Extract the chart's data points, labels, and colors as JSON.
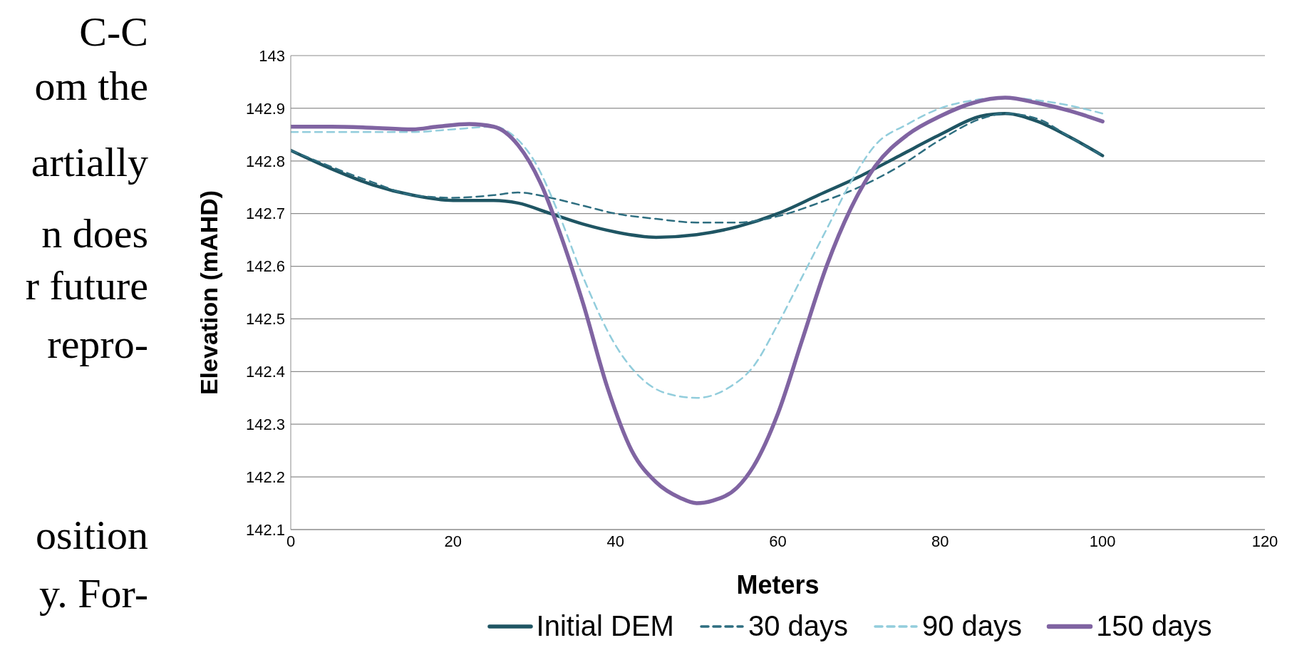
{
  "chart_data": {
    "type": "line",
    "xlabel": "Meters",
    "ylabel": "Elevation (mAHD)",
    "xlim": [
      0,
      120
    ],
    "xticks": [
      0,
      20,
      40,
      60,
      80,
      100,
      120
    ],
    "ylim": [
      142.1,
      143
    ],
    "yticks": [
      142.1,
      142.2,
      142.3,
      142.4,
      142.5,
      142.6,
      142.7,
      142.8,
      142.9,
      143
    ],
    "grid": "y",
    "legend": "bottom",
    "marker": "none",
    "annotations": [
      "C-C",
      "om the",
      "artially",
      "n does",
      "r future",
      "repro-",
      "osition",
      "y. For-"
    ],
    "series": [
      {
        "name": "Initial DEM",
        "color": "#1f5563",
        "line_style": "solid",
        "x": [
          0,
          5,
          10,
          15,
          20,
          25,
          28,
          32,
          36,
          40,
          45,
          50,
          55,
          60,
          65,
          70,
          75,
          80,
          85,
          88,
          92,
          96,
          100
        ],
        "values": [
          142.82,
          142.785,
          142.755,
          142.735,
          142.725,
          142.725,
          142.72,
          142.7,
          142.68,
          142.665,
          142.655,
          142.66,
          142.675,
          142.7,
          142.735,
          142.77,
          142.81,
          142.85,
          142.885,
          142.89,
          142.875,
          142.845,
          142.81
        ]
      },
      {
        "name": "30 days",
        "color": "#2e6e80",
        "line_style": "dashed",
        "x": [
          0,
          10,
          15,
          20,
          25,
          28,
          32,
          36,
          40,
          45,
          50,
          55,
          60,
          65,
          70,
          75,
          80,
          85,
          88,
          92,
          96,
          100
        ],
        "values": [
          142.82,
          142.76,
          142.735,
          142.73,
          142.735,
          142.74,
          142.73,
          142.715,
          142.7,
          142.69,
          142.683,
          142.683,
          142.695,
          142.72,
          142.75,
          142.79,
          142.84,
          142.88,
          142.89,
          142.88,
          142.845,
          142.81
        ]
      },
      {
        "name": "90 days",
        "color": "#92cddc",
        "line_style": "dashed",
        "x": [
          0,
          10,
          15,
          20,
          25,
          28,
          30,
          33,
          36,
          40,
          43,
          46,
          50,
          54,
          57,
          60,
          63,
          66,
          69,
          72,
          76,
          80,
          84,
          88,
          92,
          96,
          100
        ],
        "values": [
          142.855,
          142.855,
          142.855,
          142.86,
          142.865,
          142.84,
          142.8,
          142.7,
          142.58,
          142.45,
          142.39,
          142.36,
          142.35,
          142.37,
          142.41,
          142.49,
          142.58,
          142.67,
          142.76,
          142.83,
          142.87,
          142.9,
          142.915,
          142.92,
          142.915,
          142.905,
          142.89
        ]
      },
      {
        "name": "150 days",
        "color": "#8064a2",
        "line_style": "solid",
        "x": [
          0,
          5,
          10,
          15,
          18,
          22,
          25,
          28,
          31,
          33,
          36,
          39,
          42,
          45,
          48,
          50,
          52,
          55,
          57,
          60,
          63,
          66,
          69,
          72,
          76,
          80,
          84,
          88,
          92,
          96,
          100
        ],
        "values": [
          142.865,
          142.865,
          142.863,
          142.86,
          142.865,
          142.87,
          142.865,
          142.83,
          142.75,
          142.67,
          142.53,
          142.37,
          142.25,
          142.19,
          142.16,
          142.15,
          142.155,
          142.18,
          142.22,
          142.32,
          142.46,
          142.6,
          142.71,
          142.79,
          142.85,
          142.885,
          142.91,
          142.92,
          142.91,
          142.895,
          142.875
        ]
      }
    ]
  }
}
